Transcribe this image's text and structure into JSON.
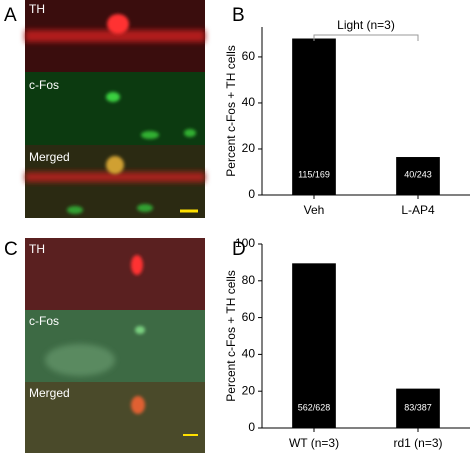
{
  "panel_labels": [
    "A",
    "B",
    "C",
    "D"
  ],
  "image_panels": [
    {
      "strips": [
        "TH",
        "c-Fos",
        "Merged"
      ]
    },
    {
      "strips": [
        "TH",
        "c-Fos",
        "Merged"
      ]
    }
  ],
  "chart_data": [
    {
      "type": "bar",
      "ylabel": "Percent c-Fos + TH cells",
      "categories": [
        "Veh",
        "L-AP4"
      ],
      "values": [
        68.0,
        16.5
      ],
      "bar_labels": [
        "115/169",
        "40/243"
      ],
      "annotation": "Light (n=3)",
      "color": "#000000",
      "ylim": [
        0,
        73
      ],
      "yticks": [
        0,
        20,
        40,
        60
      ]
    },
    {
      "type": "bar",
      "ylabel": "Percent c-Fos + TH cells",
      "categories": [
        "WT (n=3)",
        "rd1 (n=3)"
      ],
      "values": [
        89.5,
        21.4
      ],
      "bar_labels": [
        "562/628",
        "83/387"
      ],
      "color": "#000000",
      "ylim": [
        0,
        100
      ],
      "yticks": [
        0,
        20,
        40,
        60,
        80,
        100
      ]
    }
  ]
}
